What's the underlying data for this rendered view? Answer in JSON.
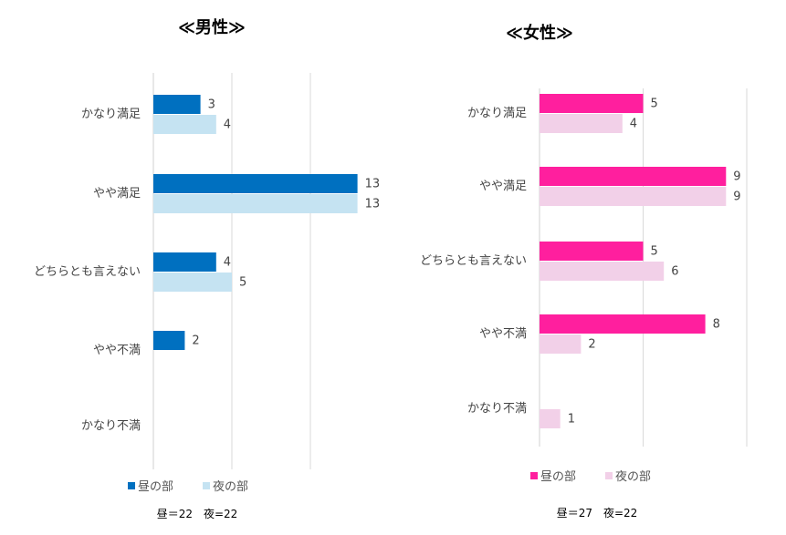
{
  "chart_data": [
    {
      "type": "bar",
      "orientation": "horizontal",
      "title": "≪男性≫",
      "categories": [
        "かなり満足",
        "やや満足",
        "どちらとも言えない",
        "やや不満",
        "かなり不満"
      ],
      "series": [
        {
          "name": "昼の部",
          "values": [
            3,
            13,
            4,
            2,
            null
          ],
          "color": "#0070C0"
        },
        {
          "name": "夜の部",
          "values": [
            4,
            13,
            5,
            null,
            null
          ],
          "color": "#C5E3F2"
        }
      ],
      "xlim": [
        0,
        15
      ],
      "grid": true,
      "legend": "bottom",
      "note": "昼＝22　夜=22"
    },
    {
      "type": "bar",
      "orientation": "horizontal",
      "title": "≪女性≫",
      "categories": [
        "かなり満足",
        "やや満足",
        "どちらとも言えない",
        "やや不満",
        "かなり不満"
      ],
      "series": [
        {
          "name": "昼の部",
          "values": [
            5,
            9,
            5,
            8,
            null
          ],
          "color": "#FF1F9E"
        },
        {
          "name": "夜の部",
          "values": [
            4,
            9,
            6,
            2,
            1
          ],
          "color": "#F2D0E8"
        }
      ],
      "xlim": [
        0,
        10
      ],
      "grid": true,
      "legend": "bottom",
      "note": "昼＝27　夜=22"
    }
  ]
}
